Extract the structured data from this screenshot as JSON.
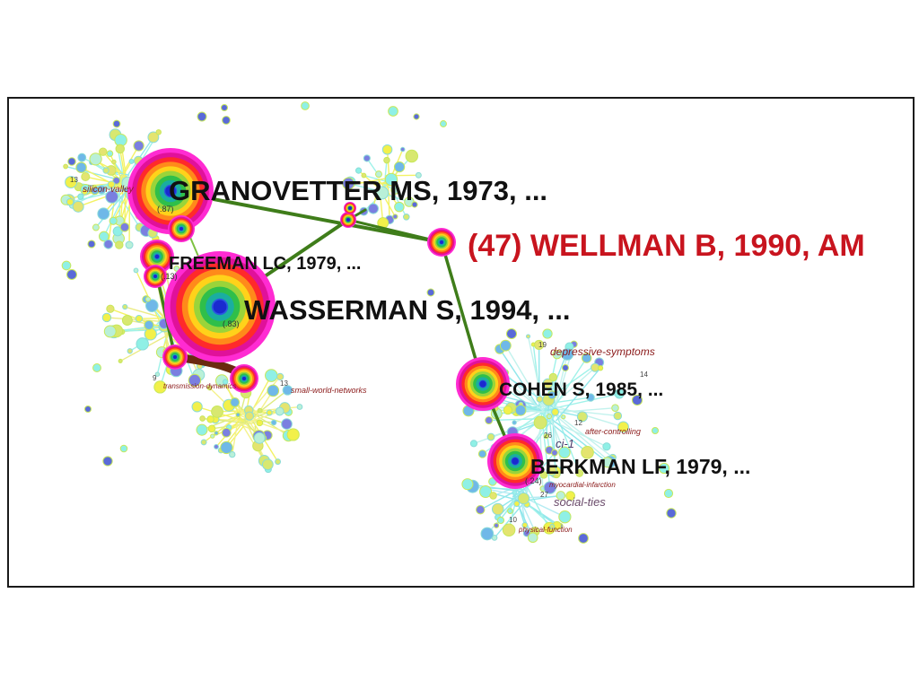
{
  "colors": {
    "background": "#ffffff",
    "frame": "#1a1a1a",
    "highlight_label": "#c8141e",
    "label": "#111111",
    "cluster_label": "#8b1a1a",
    "edge_main": "#3f7d1a",
    "edge_brown": "#6b2a10",
    "node_ring_outer": "#ff2bd2"
  },
  "labels": {
    "granovetter": "GRANOVETTER MS, 1973, ...",
    "wellman": "(47) WELLMAN B, 1990, AM",
    "freeman": "FREEMAN LC, 1979, ...",
    "wasserman": "WASSERMAN S, 1994, ...",
    "cohen": "COHEN S, 1985, ...",
    "berkman": "BERKMAN LF, 1979, ..."
  },
  "cluster_labels": {
    "silicon_valley": "silicon-valley",
    "transmission_dynamics": "transmission-dynamics",
    "small_world_networks": "small-world-networks",
    "depressive_symptoms": "depressive-symptoms",
    "after_controlling": "after-controlling",
    "ci_1": "ci-1",
    "myocardial_infarction": "myocardial-infarction",
    "social_ties": "social-ties",
    "physical_function": "physical-function"
  },
  "cluster_numbers": {
    "n13_left": "13",
    "n9": "9",
    "n13_small_world": "13",
    "n19": "19",
    "n14": "14",
    "n12": "12",
    "n26": "26",
    "n27": "27",
    "n10": "10"
  },
  "node_values": {
    "granovetter": "(.87)",
    "freeman": "(.13)",
    "wasserman": "(.83)",
    "berkman": "(.24)"
  }
}
